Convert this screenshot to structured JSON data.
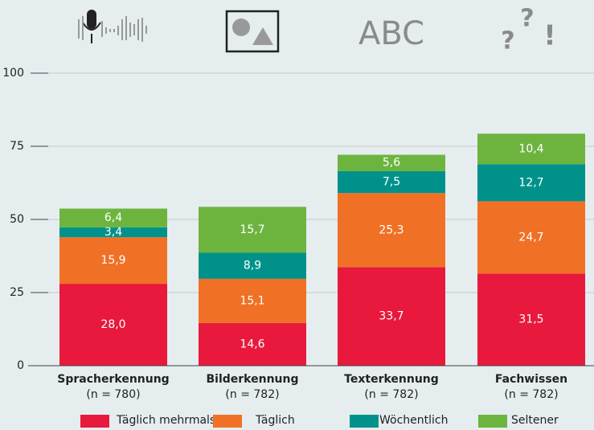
{
  "chart_data": {
    "type": "stacked_bar",
    "icon_texts": [
      "ABC",
      "?",
      "?",
      "!"
    ],
    "categories": [
      "Spracherkennung",
      "Bilderkennung",
      "Texterkennung",
      "Fachwissen"
    ],
    "category_notes": [
      "(n = 780)",
      "(n = 782)",
      "(n = 782)",
      "(n = 782)"
    ],
    "series": [
      {
        "name": "Täglich mehrmals",
        "color": "#e8193c",
        "values": [
          28.0,
          14.6,
          33.7,
          31.5
        ],
        "value_labels": [
          "28,0",
          "14,6",
          "33,7",
          "31,5"
        ]
      },
      {
        "name": "Täglich",
        "color": "#f07125",
        "values": [
          15.9,
          15.1,
          25.3,
          24.7
        ],
        "value_labels": [
          "15,9",
          "15,1",
          "25,3",
          "24,7"
        ]
      },
      {
        "name": "Wöchentlich",
        "color": "#00928a",
        "values": [
          3.4,
          8.9,
          7.5,
          12.7
        ],
        "value_labels": [
          "3,4",
          "8,9",
          "7,5",
          "12,7"
        ]
      },
      {
        "name": "Seltener",
        "color": "#6db43f",
        "values": [
          6.4,
          15.7,
          5.6,
          10.4
        ],
        "value_labels": [
          "6,4",
          "15,7",
          "5,6",
          "10,4"
        ]
      }
    ],
    "ylim": [
      0,
      100
    ],
    "yticks": [
      0,
      25,
      50,
      75,
      100
    ],
    "grid": true
  }
}
